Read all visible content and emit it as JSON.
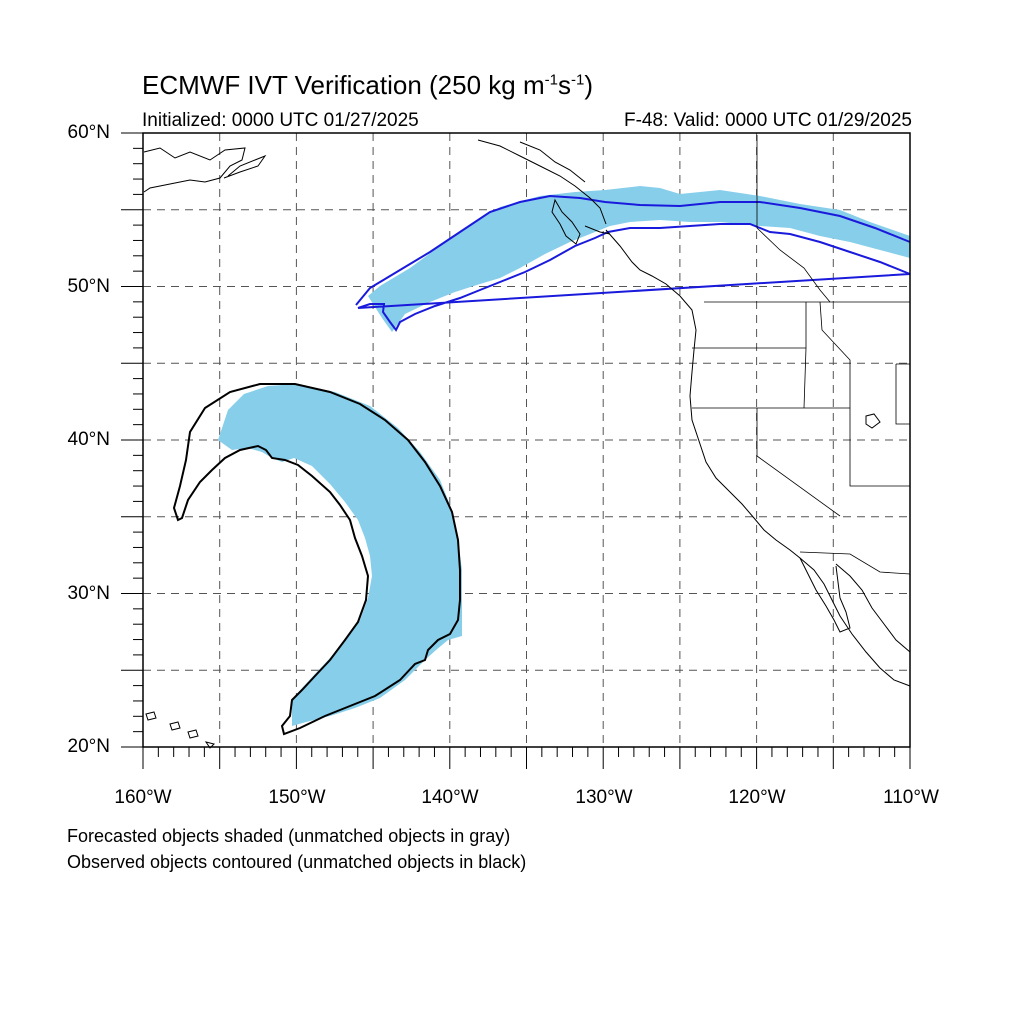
{
  "title": {
    "main": "ECMWF IVT Verification (250 kg m",
    "exp1": "-1",
    "mid": "s",
    "exp2": "-1",
    "end": ")"
  },
  "initialized": "Initialized: 0000 UTC 01/27/2025",
  "valid": "F-48: Valid: 0000 UTC 01/29/2025",
  "lat_labels": [
    "60°N",
    "50°N",
    "40°N",
    "30°N",
    "20°N"
  ],
  "lon_labels": [
    "160°W",
    "150°W",
    "140°W",
    "130°W",
    "120°W",
    "110°W"
  ],
  "footnotes": [
    "Forecasted objects shaded (unmatched objects in gray)",
    "Observed objects contoured (unmatched objects in black)"
  ],
  "map_extent": {
    "lon": [
      -160,
      -110
    ],
    "lat": [
      20,
      60
    ]
  },
  "colors": {
    "forecast_fill": "#87ceeb",
    "matched_contour": "#1a1adc",
    "unmatched_contour": "#000000",
    "grid": "#555555"
  }
}
